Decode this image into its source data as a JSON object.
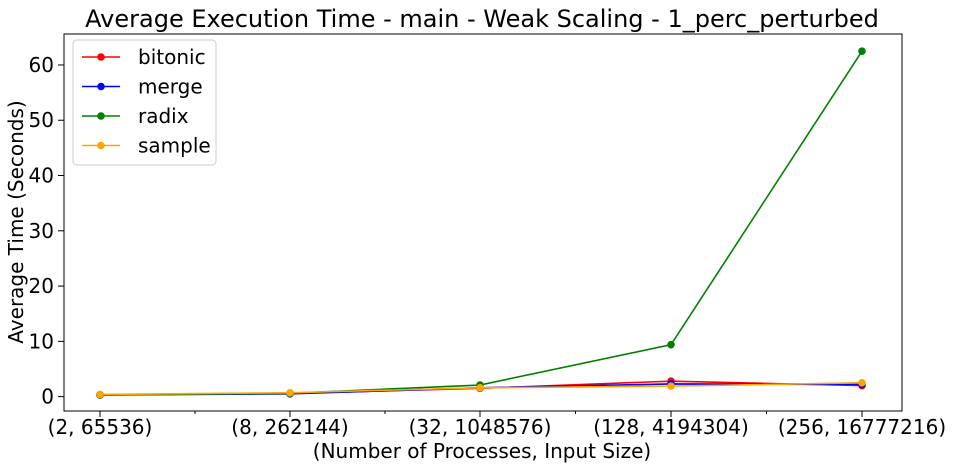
{
  "chart_data": {
    "type": "line",
    "title": "Average Execution Time - main - Weak Scaling - 1_perc_perturbed",
    "xlabel": "(Number of Processes, Input Size)",
    "ylabel": "Average Time (Seconds)",
    "categories": [
      "(2, 65536)",
      "(8, 262144)",
      "(32, 1048576)",
      "(128, 4194304)",
      "(256, 16777216)"
    ],
    "ylim": [
      -2.6,
      65.6
    ],
    "yticks": [
      0,
      10,
      20,
      30,
      40,
      50,
      60
    ],
    "grid": false,
    "legend_position": "top-left",
    "series": [
      {
        "name": "bitonic",
        "color": "#ff0000",
        "values": [
          0.3,
          0.6,
          1.5,
          2.8,
          2.0
        ]
      },
      {
        "name": "merge",
        "color": "#0000ff",
        "values": [
          0.3,
          0.5,
          1.6,
          2.3,
          2.2
        ]
      },
      {
        "name": "radix",
        "color": "#008000",
        "values": [
          0.3,
          0.6,
          2.1,
          9.4,
          62.5
        ]
      },
      {
        "name": "sample",
        "color": "#ffa500",
        "values": [
          0.4,
          0.7,
          1.6,
          1.9,
          2.5
        ]
      }
    ]
  }
}
